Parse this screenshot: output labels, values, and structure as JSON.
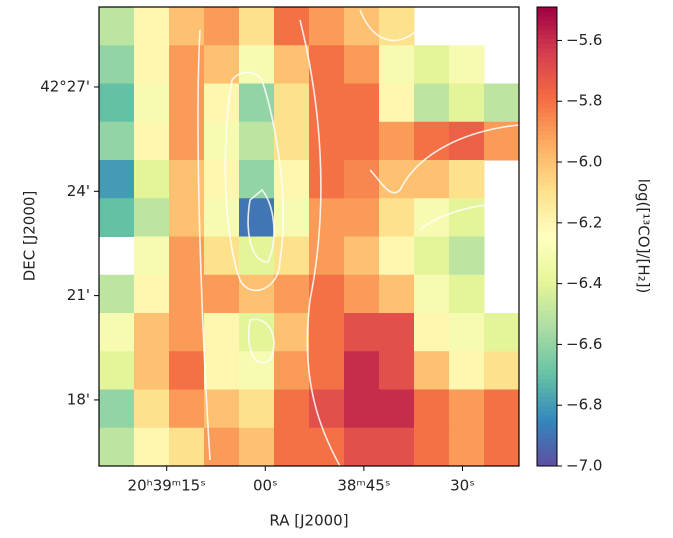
{
  "chart_data": {
    "type": "heatmap",
    "x_label": "RA [J2000]",
    "y_label": "DEC [J2000]",
    "colorbar_label": "log([¹³CO]/[H₂])",
    "xlim": [
      2365.3,
      2301.4
    ],
    "xticks": [
      {
        "value": 2355,
        "label": "20ʰ39ᵐ15ˢ"
      },
      {
        "value": 2340,
        "label": "00ˢ"
      },
      {
        "value": 2325,
        "label": "38ᵐ45ˢ"
      },
      {
        "value": 2310,
        "label": "30ˢ"
      }
    ],
    "ylim": [
      16.1,
      29.3
    ],
    "yticks": [
      {
        "value": 27,
        "label": "42°27'"
      },
      {
        "value": 24,
        "label": "24'"
      },
      {
        "value": 21,
        "label": "21'"
      },
      {
        "value": 18,
        "label": "18'"
      }
    ],
    "clim": [
      -7.0,
      -5.49
    ],
    "cticks": [
      {
        "value": -5.6,
        "label": "−5.6"
      },
      {
        "value": -5.8,
        "label": "−5.8"
      },
      {
        "value": -6.0,
        "label": "−6.0"
      },
      {
        "value": -6.2,
        "label": "−6.2"
      },
      {
        "value": -6.4,
        "label": "−6.4"
      },
      {
        "value": -6.6,
        "label": "−6.6"
      },
      {
        "value": -6.8,
        "label": "−6.8"
      },
      {
        "value": -7.0,
        "label": "−7.0"
      }
    ],
    "colormap": [
      "#5e4fa2",
      "#3288bd",
      "#66c2a5",
      "#abdda4",
      "#e6f598",
      "#ffffbf",
      "#fee08b",
      "#fdae61",
      "#f46d43",
      "#d53e4f",
      "#9e0142"
    ],
    "values": [
      [
        -6.5,
        -6.2,
        -6.0,
        -5.9,
        -6.1,
        -5.8,
        -5.9,
        -6.0,
        -6.1,
        null,
        null,
        null
      ],
      [
        -6.6,
        -6.2,
        -5.9,
        -6.0,
        -6.3,
        -6.0,
        -5.8,
        -5.9,
        -6.3,
        -6.4,
        -6.3,
        null
      ],
      [
        -6.7,
        -6.3,
        -5.9,
        -6.2,
        -6.6,
        -6.1,
        -5.8,
        -5.8,
        -6.2,
        -6.5,
        -6.4,
        -6.5
      ],
      [
        -6.6,
        -6.2,
        -5.9,
        -6.3,
        -6.5,
        -6.1,
        -5.8,
        -5.8,
        -5.9,
        -5.8,
        -5.75,
        -5.9
      ],
      [
        -6.8,
        -6.4,
        -6.0,
        -6.2,
        -6.6,
        -6.2,
        -5.8,
        -5.85,
        -6.0,
        -6.0,
        -6.1,
        null
      ],
      [
        -6.7,
        -6.5,
        -6.0,
        -6.3,
        -6.9,
        -6.3,
        -5.9,
        -5.9,
        -6.1,
        -6.3,
        -6.4,
        null
      ],
      [
        null,
        -6.3,
        -5.9,
        -6.1,
        -6.4,
        -6.1,
        -5.9,
        -6.0,
        -6.2,
        -6.4,
        -6.5,
        null
      ],
      [
        -6.5,
        -6.2,
        -5.9,
        -5.9,
        -6.0,
        -5.9,
        -5.8,
        -5.9,
        -6.0,
        -6.3,
        -6.4,
        null
      ],
      [
        -6.3,
        -6.0,
        -5.9,
        -6.2,
        -6.4,
        -6.0,
        -5.8,
        -5.7,
        -5.7,
        -6.2,
        -6.3,
        -6.4
      ],
      [
        -6.4,
        -6.0,
        -5.8,
        -6.2,
        -6.3,
        -5.9,
        -5.8,
        -5.6,
        -5.7,
        -6.0,
        -6.2,
        -6.1
      ],
      [
        -6.6,
        -6.1,
        -5.9,
        -6.0,
        -6.1,
        -5.8,
        -5.7,
        -5.6,
        -5.6,
        -5.8,
        -5.9,
        -5.8
      ],
      [
        -6.5,
        -6.2,
        -6.1,
        -5.9,
        -6.0,
        -5.8,
        -5.8,
        -5.7,
        -5.7,
        -5.8,
        -5.9,
        -5.8
      ]
    ]
  }
}
